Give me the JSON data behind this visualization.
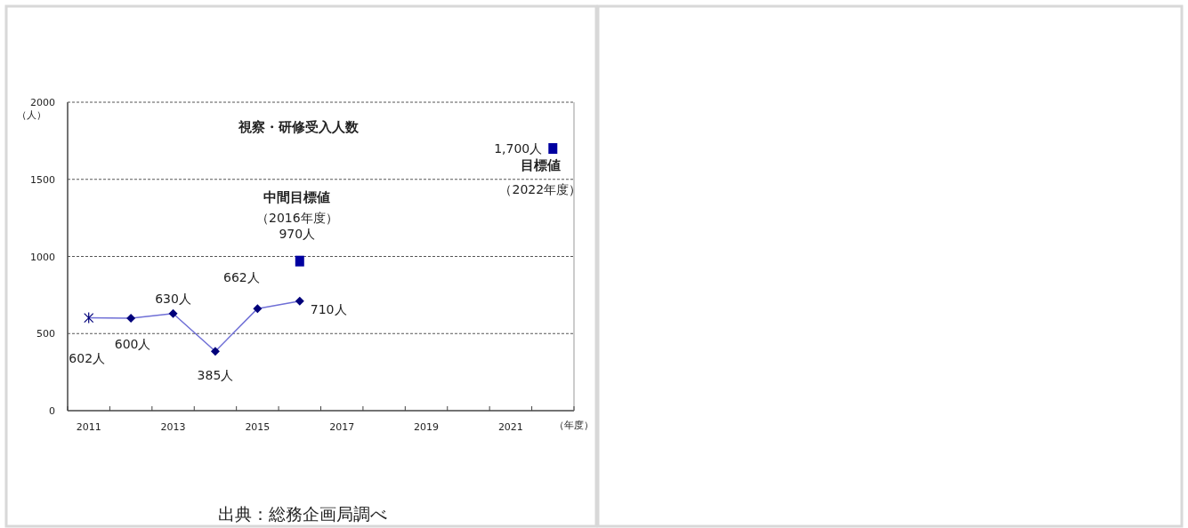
{
  "chart_data": {
    "type": "line",
    "title": "視察・研修受入人数",
    "ylabel": "（人）",
    "xlabel": "（年度）",
    "categories": [
      "2011",
      null,
      "2013",
      null,
      "2015",
      null,
      "2017",
      null,
      "2019",
      null,
      "2021",
      null
    ],
    "ylim": [
      0,
      2000
    ],
    "yticks": [
      0,
      500,
      1000,
      1500,
      2000
    ],
    "grid": "y",
    "series": [
      {
        "type": "line",
        "color": "#6f6fd6",
        "marker": "none",
        "line_style": "solid",
        "values": [
          602,
          600,
          630,
          385,
          662,
          710,
          null,
          null,
          null,
          null,
          null,
          null
        ]
      },
      {
        "type": "scatter",
        "color": "#00007a",
        "marker": "cross",
        "values": [
          602,
          null,
          null,
          null,
          null,
          null,
          null,
          null,
          null,
          null,
          null,
          null
        ],
        "value_labels": [
          "602人",
          null,
          null,
          null,
          null,
          null,
          null,
          null,
          null,
          null,
          null,
          null
        ]
      },
      {
        "type": "scatter",
        "color": "#00007a",
        "marker": "diamond",
        "values": [
          null,
          600,
          630,
          385,
          662,
          710,
          null,
          null,
          null,
          null,
          null,
          null
        ],
        "value_labels": [
          null,
          "600人",
          "630人",
          "385人",
          "662人",
          "710人",
          null,
          null,
          null,
          null,
          null,
          null
        ]
      },
      {
        "type": "scatter",
        "color": "#0000a0",
        "marker": "square",
        "values": [
          null,
          null,
          null,
          null,
          null,
          970,
          null,
          null,
          null,
          null,
          null,
          1700
        ],
        "value_labels": [
          null,
          null,
          null,
          null,
          null,
          "970人",
          null,
          null,
          null,
          null,
          null,
          "1,700人"
        ]
      }
    ],
    "annotations": [
      "中間目標値",
      "（2016年度）",
      "目標値",
      "（2022年度）",
      "出典：総務企画局調べ"
    ]
  }
}
